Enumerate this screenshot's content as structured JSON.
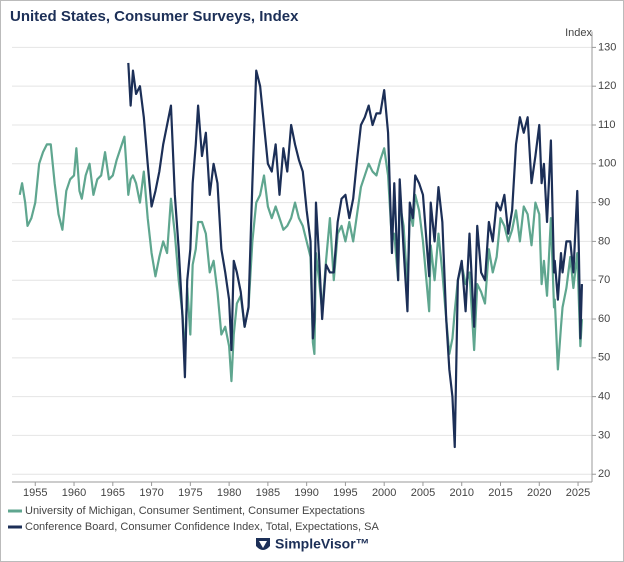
{
  "chart_data": {
    "type": "line",
    "title": "United States, Consumer Surveys, Index",
    "y_axis_label": "Index",
    "logo": "SimpleVisor™",
    "xlim": [
      1952,
      2026.8
    ],
    "xticks": [
      1955,
      1960,
      1965,
      1970,
      1975,
      1980,
      1985,
      1990,
      1995,
      2000,
      2005,
      2010,
      2015,
      2020,
      2025
    ],
    "ylim": [
      18,
      131
    ],
    "yticks": [
      20,
      30,
      40,
      50,
      60,
      70,
      80,
      90,
      100,
      110,
      120,
      130
    ],
    "grid": true,
    "x": [
      1953,
      1953.3,
      1953.7,
      1954,
      1954.5,
      1955,
      1955.5,
      1956,
      1956.5,
      1957,
      1957.5,
      1958,
      1958.5,
      1959,
      1959.5,
      1960,
      1960.3,
      1960.7,
      1961,
      1961.5,
      1962,
      1962.5,
      1963,
      1963.5,
      1964,
      1964.5,
      1965,
      1965.5,
      1966,
      1966.5,
      1967,
      1967.3,
      1967.6,
      1968,
      1968.5,
      1969,
      1969.5,
      1970,
      1970.5,
      1971,
      1971.5,
      1972,
      1972.5,
      1973,
      1973.5,
      1974,
      1974.3,
      1974.6,
      1975,
      1975.3,
      1975.7,
      1976,
      1976.5,
      1977,
      1977.5,
      1978,
      1978.5,
      1979,
      1979.5,
      1980,
      1980.3,
      1980.6,
      1981,
      1981.5,
      1982,
      1982.5,
      1983,
      1983.5,
      1984,
      1984.5,
      1985,
      1985.5,
      1986,
      1986.5,
      1987,
      1987.5,
      1988,
      1988.5,
      1989,
      1989.5,
      1990,
      1990.5,
      1990.8,
      1991,
      1991.2,
      1991.6,
      1992,
      1992.5,
      1993,
      1993.5,
      1994,
      1994.5,
      1995,
      1995.5,
      1996,
      1996.5,
      1997,
      1997.5,
      1998,
      1998.5,
      1999,
      1999.5,
      2000,
      2000.5,
      2001,
      2001.3,
      2001.8,
      2002,
      2002.5,
      2003,
      2003.3,
      2003.7,
      2004,
      2004.5,
      2005,
      2005.8,
      2006,
      2006.5,
      2007,
      2007.5,
      2008,
      2008.4,
      2008.8,
      2009.1,
      2009.5,
      2010,
      2010.5,
      2011,
      2011.6,
      2012,
      2012.5,
      2013,
      2013.5,
      2014,
      2014.5,
      2015,
      2015.5,
      2016,
      2016.5,
      2017,
      2017.5,
      2018,
      2018.5,
      2019,
      2019.5,
      2020,
      2020.3,
      2020.6,
      2021,
      2021.5,
      2021.9,
      2022,
      2022.4,
      2022.8,
      2023,
      2023.5,
      2024,
      2024.4,
      2024.9,
      2025.1,
      2025.3,
      2025.5
    ],
    "series": [
      {
        "name": "University of Michigan, Consumer Sentiment, Consumer Expectations",
        "color": "#5fa68f",
        "values": [
          92,
          95,
          90,
          84,
          86,
          90,
          100,
          103,
          105,
          105,
          95,
          87,
          83,
          93,
          96,
          97,
          104,
          93,
          91,
          97,
          100,
          92,
          96,
          97,
          103,
          96,
          97,
          101,
          104,
          107,
          92,
          96,
          97,
          95,
          90,
          98,
          86,
          77,
          71,
          76,
          80,
          77,
          91,
          82,
          70,
          61,
          50,
          68,
          56,
          74,
          78,
          85,
          85,
          82,
          72,
          75,
          67,
          56,
          58,
          53,
          44,
          56,
          64,
          66,
          58,
          63,
          80,
          90,
          92,
          97,
          89,
          86,
          89,
          86,
          83,
          84,
          86,
          90,
          86,
          84,
          80,
          76,
          54,
          51,
          77,
          70,
          62,
          75,
          86,
          70,
          82,
          84,
          80,
          85,
          80,
          87,
          94,
          97,
          100,
          98,
          97,
          101,
          104,
          97,
          80,
          82,
          70,
          90,
          84,
          68,
          88,
          84,
          92,
          88,
          80,
          62,
          79,
          70,
          82,
          72,
          60,
          51,
          55,
          62,
          70,
          74,
          69,
          72,
          52,
          69,
          67,
          64,
          78,
          72,
          76,
          86,
          84,
          80,
          83,
          88,
          80,
          89,
          87,
          79,
          90,
          87,
          69,
          75,
          66,
          86,
          63,
          65,
          47,
          58,
          63,
          68,
          76,
          68,
          77,
          65,
          53,
          60
        ]
      },
      {
        "name": "Conference Board, Consumer Confidence Index, Total, Expectations, SA",
        "color": "#1c2f57",
        "values": [
          null,
          null,
          null,
          null,
          null,
          null,
          null,
          null,
          null,
          null,
          null,
          null,
          null,
          null,
          null,
          null,
          null,
          null,
          null,
          null,
          null,
          null,
          null,
          null,
          null,
          null,
          null,
          null,
          null,
          null,
          126,
          115,
          124,
          118,
          120,
          112,
          100,
          89,
          93,
          98,
          105,
          110,
          115,
          92,
          78,
          60,
          45,
          70,
          78,
          95,
          105,
          115,
          102,
          108,
          92,
          100,
          95,
          78,
          72,
          65,
          52,
          75,
          72,
          67,
          58,
          63,
          95,
          124,
          120,
          110,
          100,
          98,
          105,
          92,
          104,
          98,
          110,
          105,
          101,
          98,
          88,
          80,
          55,
          60,
          90,
          76,
          60,
          74,
          72,
          72,
          85,
          91,
          92,
          86,
          91,
          101,
          110,
          112,
          115,
          110,
          113,
          113,
          119,
          108,
          77,
          95,
          70,
          96,
          78,
          62,
          90,
          86,
          97,
          95,
          92,
          71,
          90,
          80,
          94,
          85,
          60,
          47,
          40,
          27,
          70,
          75,
          62,
          82,
          58,
          84,
          72,
          70,
          85,
          80,
          90,
          88,
          92,
          82,
          88,
          105,
          112,
          108,
          112,
          95,
          102,
          110,
          95,
          100,
          85,
          106,
          72,
          75,
          65,
          77,
          72,
          80,
          80,
          72,
          93,
          78,
          55,
          69
        ]
      }
    ]
  }
}
